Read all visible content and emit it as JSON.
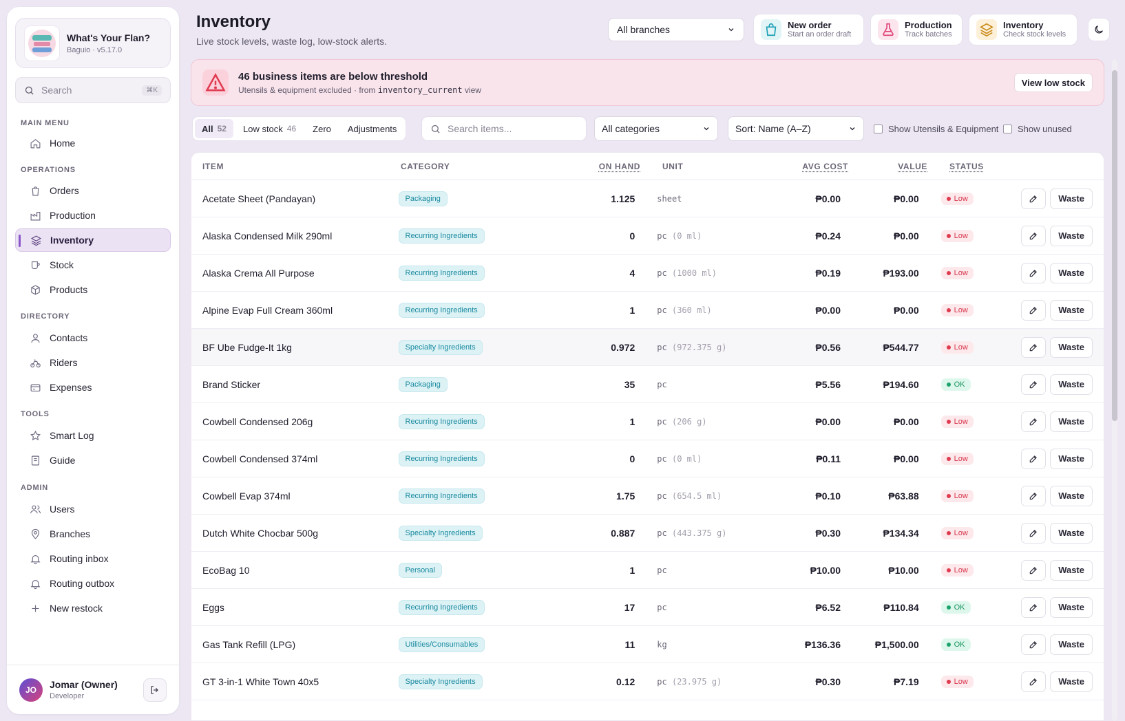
{
  "brand": {
    "name": "What's Your Flan?",
    "sub": "Baguio · v5.17.0"
  },
  "sidebar_search": {
    "placeholder": "Search",
    "shortcut": "⌘K"
  },
  "nav": {
    "main_menu": "MAIN MENU",
    "home": "Home",
    "operations": "OPERATIONS",
    "orders": "Orders",
    "production": "Production",
    "inventory": "Inventory",
    "stock": "Stock",
    "products": "Products",
    "directory": "DIRECTORY",
    "contacts": "Contacts",
    "riders": "Riders",
    "expenses": "Expenses",
    "tools": "TOOLS",
    "smart_log": "Smart Log",
    "guide": "Guide",
    "admin": "ADMIN",
    "users": "Users",
    "branches": "Branches",
    "routing_inbox": "Routing inbox",
    "routing_outbox": "Routing outbox",
    "new_restock": "New restock"
  },
  "user": {
    "initials": "JO",
    "name": "Jomar (Owner)",
    "role": "Developer"
  },
  "header": {
    "title": "Inventory",
    "subtitle": "Live stock levels, waste log, low-stock alerts.",
    "branch_select": "All branches"
  },
  "quick_actions": {
    "new_order": {
      "title": "New order",
      "sub": "Start an order draft"
    },
    "production": {
      "title": "Production",
      "sub": "Track batches"
    },
    "inventory": {
      "title": "Inventory",
      "sub": "Check stock levels"
    }
  },
  "alert": {
    "title": "46 business items are below threshold",
    "desc_prefix": "Utensils & equipment excluded · from",
    "desc_code": "inventory_current",
    "desc_suffix": "view",
    "button": "View low stock"
  },
  "filters": {
    "tabs": [
      {
        "label": "All",
        "count": "52"
      },
      {
        "label": "Low stock",
        "count": "46"
      },
      {
        "label": "Zero",
        "count": ""
      },
      {
        "label": "Adjustments",
        "count": ""
      }
    ],
    "search_placeholder": "Search items...",
    "category_select": "All categories",
    "sort_select": "Sort: Name (A–Z)",
    "show_utensils": "Show Utensils & Equipment",
    "show_unused": "Show unused"
  },
  "table": {
    "headers": {
      "item": "ITEM",
      "category": "CATEGORY",
      "on_hand": "ON HAND",
      "unit": "UNIT",
      "avg_cost": "AVG COST",
      "value": "VALUE",
      "status": "STATUS"
    },
    "rows": [
      {
        "item": "Acetate Sheet (Pandayan)",
        "category": "Packaging",
        "on_hand": "1.125",
        "unit": "sheet",
        "unit_extra": "",
        "avg_cost": "₱0.00",
        "value": "₱0.00",
        "status": "Low"
      },
      {
        "item": "Alaska Condensed Milk 290ml",
        "category": "Recurring Ingredients",
        "on_hand": "0",
        "unit": "pc",
        "unit_extra": "(0 ml)",
        "avg_cost": "₱0.24",
        "value": "₱0.00",
        "status": "Low"
      },
      {
        "item": "Alaska Crema All Purpose",
        "category": "Recurring Ingredients",
        "on_hand": "4",
        "unit": "pc",
        "unit_extra": "(1000 ml)",
        "avg_cost": "₱0.19",
        "value": "₱193.00",
        "status": "Low"
      },
      {
        "item": "Alpine Evap Full Cream 360ml",
        "category": "Recurring Ingredients",
        "on_hand": "1",
        "unit": "pc",
        "unit_extra": "(360 ml)",
        "avg_cost": "₱0.00",
        "value": "₱0.00",
        "status": "Low"
      },
      {
        "item": "BF Ube Fudge-It 1kg",
        "category": "Specialty Ingredients",
        "on_hand": "0.972",
        "unit": "pc",
        "unit_extra": "(972.375 g)",
        "avg_cost": "₱0.56",
        "value": "₱544.77",
        "status": "Low"
      },
      {
        "item": "Brand Sticker",
        "category": "Packaging",
        "on_hand": "35",
        "unit": "pc",
        "unit_extra": "",
        "avg_cost": "₱5.56",
        "value": "₱194.60",
        "status": "OK"
      },
      {
        "item": "Cowbell Condensed 206g",
        "category": "Recurring Ingredients",
        "on_hand": "1",
        "unit": "pc",
        "unit_extra": "(206 g)",
        "avg_cost": "₱0.00",
        "value": "₱0.00",
        "status": "Low"
      },
      {
        "item": "Cowbell Condensed 374ml",
        "category": "Recurring Ingredients",
        "on_hand": "0",
        "unit": "pc",
        "unit_extra": "(0 ml)",
        "avg_cost": "₱0.11",
        "value": "₱0.00",
        "status": "Low"
      },
      {
        "item": "Cowbell Evap 374ml",
        "category": "Recurring Ingredients",
        "on_hand": "1.75",
        "unit": "pc",
        "unit_extra": "(654.5 ml)",
        "avg_cost": "₱0.10",
        "value": "₱63.88",
        "status": "Low"
      },
      {
        "item": "Dutch White Chocbar 500g",
        "category": "Specialty Ingredients",
        "on_hand": "0.887",
        "unit": "pc",
        "unit_extra": "(443.375 g)",
        "avg_cost": "₱0.30",
        "value": "₱134.34",
        "status": "Low"
      },
      {
        "item": "EcoBag 10",
        "category": "Personal",
        "on_hand": "1",
        "unit": "pc",
        "unit_extra": "",
        "avg_cost": "₱10.00",
        "value": "₱10.00",
        "status": "Low"
      },
      {
        "item": "Eggs",
        "category": "Recurring Ingredients",
        "on_hand": "17",
        "unit": "pc",
        "unit_extra": "",
        "avg_cost": "₱6.52",
        "value": "₱110.84",
        "status": "OK"
      },
      {
        "item": "Gas Tank Refill (LPG)",
        "category": "Utilities/Consumables",
        "on_hand": "11",
        "unit": "kg",
        "unit_extra": "",
        "avg_cost": "₱136.36",
        "value": "₱1,500.00",
        "status": "OK"
      },
      {
        "item": "GT 3-in-1 White Town 40x5",
        "category": "Specialty Ingredients",
        "on_hand": "0.12",
        "unit": "pc",
        "unit_extra": "(23.975 g)",
        "avg_cost": "₱0.30",
        "value": "₱7.19",
        "status": "Low"
      }
    ],
    "waste_label": "Waste"
  },
  "colors": {
    "accent": "#8a55c9",
    "low": "#d6344a",
    "ok": "#18935f",
    "category": "#1a8aa0",
    "alert_bg": "#f9e4ec"
  }
}
